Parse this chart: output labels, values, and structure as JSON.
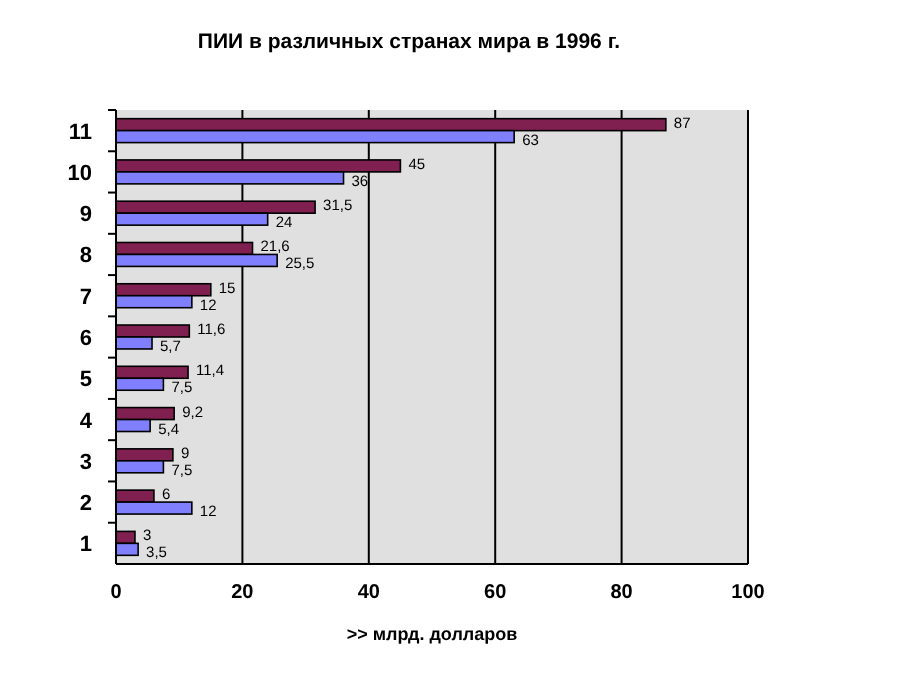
{
  "chart_data": {
    "type": "bar",
    "orientation": "horizontal",
    "title": "ПИИ в различных странах мира в 1996 г.",
    "xlabel": ">> млрд. долларов",
    "categories": [
      "11",
      "10",
      "9",
      "8",
      "7",
      "6",
      "5",
      "4",
      "3",
      "2",
      "1"
    ],
    "series": [
      {
        "color": "#7f2050",
        "values": [
          87,
          45,
          31.5,
          21.6,
          15,
          11.6,
          11.4,
          9.2,
          9,
          6,
          3
        ],
        "value_labels": [
          "87",
          "45",
          "31,5",
          "21,6",
          "15",
          "11,6",
          "11,4",
          "9,2",
          "9",
          "6",
          "3"
        ]
      },
      {
        "color": "#8080ff",
        "values": [
          63,
          36,
          24,
          25.5,
          12,
          5.7,
          7.5,
          5.4,
          7.5,
          12,
          3.5
        ],
        "value_labels": [
          "63",
          "36",
          "24",
          "25,5",
          "12",
          "5,7",
          "7,5",
          "5,4",
          "7,5",
          "12",
          "3,5"
        ]
      }
    ],
    "xlim": [
      0,
      100
    ],
    "xticks": [
      0,
      20,
      40,
      60,
      80,
      100
    ],
    "grid": "x"
  }
}
